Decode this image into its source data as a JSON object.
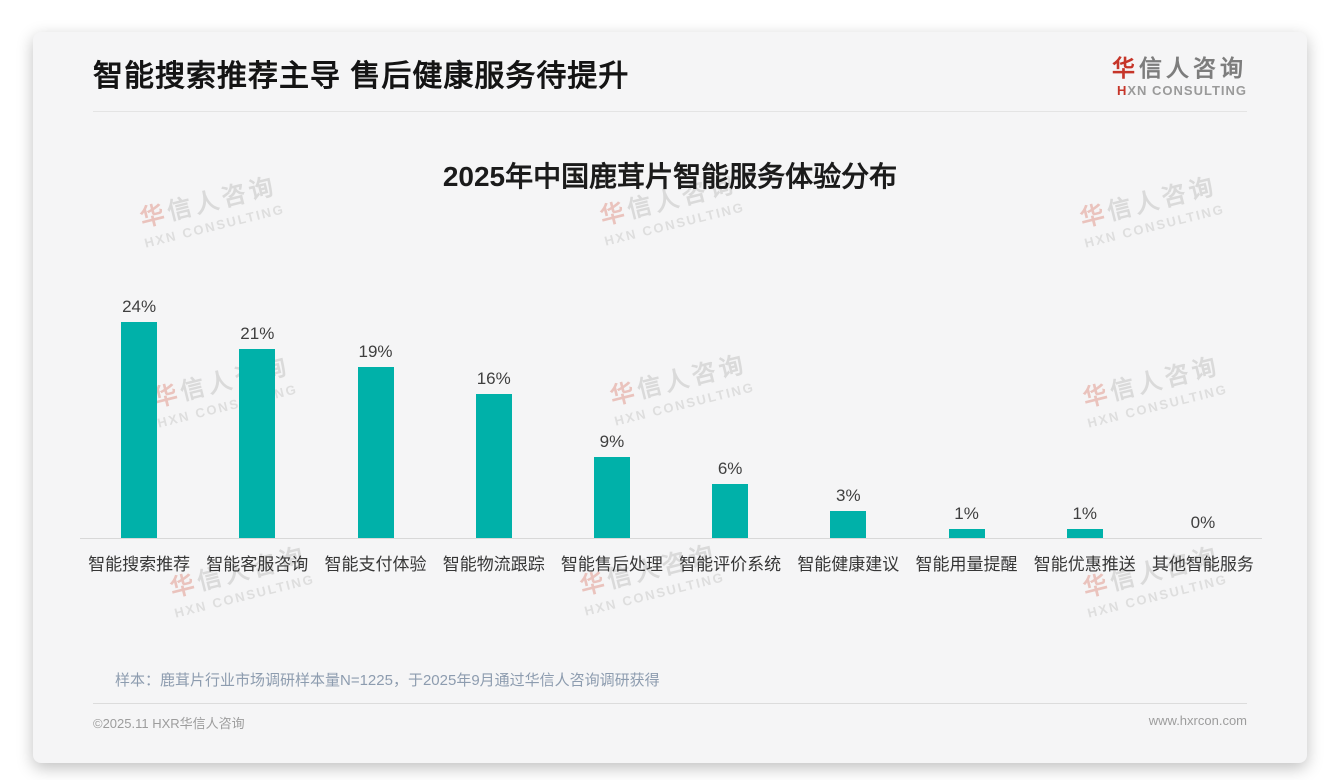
{
  "header": {
    "title": "智能搜索推荐主导 售后健康服务待提升"
  },
  "logo": {
    "cn_first": "华",
    "cn_rest": "信人咨询",
    "en_first": "H",
    "en_rest": "XN CONSULTING"
  },
  "watermark": {
    "line1_first": "华",
    "line1_rest": "信人咨询",
    "line2": "HXN CONSULTING"
  },
  "chart_data": {
    "type": "bar",
    "title": "2025年中国鹿茸片智能服务体验分布",
    "categories": [
      "智能搜索推荐",
      "智能客服咨询",
      "智能支付体验",
      "智能物流跟踪",
      "智能售后处理",
      "智能评价系统",
      "智能健康建议",
      "智能用量提醒",
      "智能优惠推送",
      "其他智能服务"
    ],
    "values": [
      24,
      21,
      19,
      16,
      9,
      6,
      3,
      1,
      1,
      0
    ],
    "value_labels": [
      "24%",
      "21%",
      "19%",
      "16%",
      "9%",
      "6%",
      "3%",
      "1%",
      "1%",
      "0%"
    ],
    "unit": "%",
    "ylim": [
      0,
      26
    ],
    "grid": false,
    "legend": false,
    "bar_color": "#00b1a9"
  },
  "note": "样本：鹿茸片行业市场调研样本量N=1225，于2025年9月通过华信人咨询调研获得",
  "footer": {
    "left": "©2025.11 HXR华信人咨询",
    "right": "www.hxrcon.com"
  },
  "colors": {
    "accent": "#00b1a9",
    "brand_red": "#c63529",
    "card_bg": "#f5f5f6"
  }
}
